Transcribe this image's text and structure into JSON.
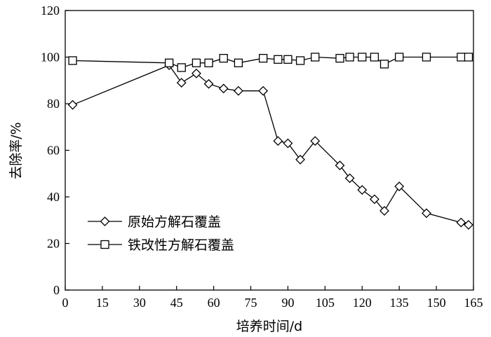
{
  "chart_data": {
    "type": "line",
    "xlabel": "培养时间/d",
    "ylabel": "去除率/%",
    "xlim": [
      0,
      165
    ],
    "ylim": [
      0,
      120
    ],
    "x_ticks": [
      0,
      15,
      30,
      45,
      60,
      75,
      90,
      105,
      120,
      135,
      150,
      165
    ],
    "y_ticks": [
      0,
      20,
      40,
      60,
      80,
      100,
      120
    ],
    "grid": false,
    "legend_position": "bottom-left",
    "series": [
      {
        "name": "原始方解石覆盖",
        "marker": "diamond",
        "x": [
          3,
          42,
          47,
          53,
          58,
          64,
          70,
          80,
          86,
          90,
          95,
          101,
          111,
          115,
          120,
          125,
          129,
          135,
          146,
          160,
          163
        ],
        "y": [
          79.5,
          96.5,
          89,
          93,
          88.5,
          86.5,
          85.5,
          85.5,
          64,
          63,
          56,
          64,
          53.5,
          48,
          43,
          39,
          34,
          44.5,
          33,
          29,
          28
        ]
      },
      {
        "name": "铁改性方解石覆盖",
        "marker": "square",
        "x": [
          3,
          42,
          47,
          53,
          58,
          64,
          70,
          80,
          86,
          90,
          95,
          101,
          111,
          115,
          120,
          125,
          129,
          135,
          146,
          160,
          163
        ],
        "y": [
          98.5,
          97.5,
          95.5,
          97.5,
          97.5,
          99.5,
          97.5,
          99.5,
          99,
          99,
          98.5,
          100,
          99.5,
          100,
          100,
          100,
          97,
          100,
          100,
          100,
          100
        ]
      }
    ]
  }
}
